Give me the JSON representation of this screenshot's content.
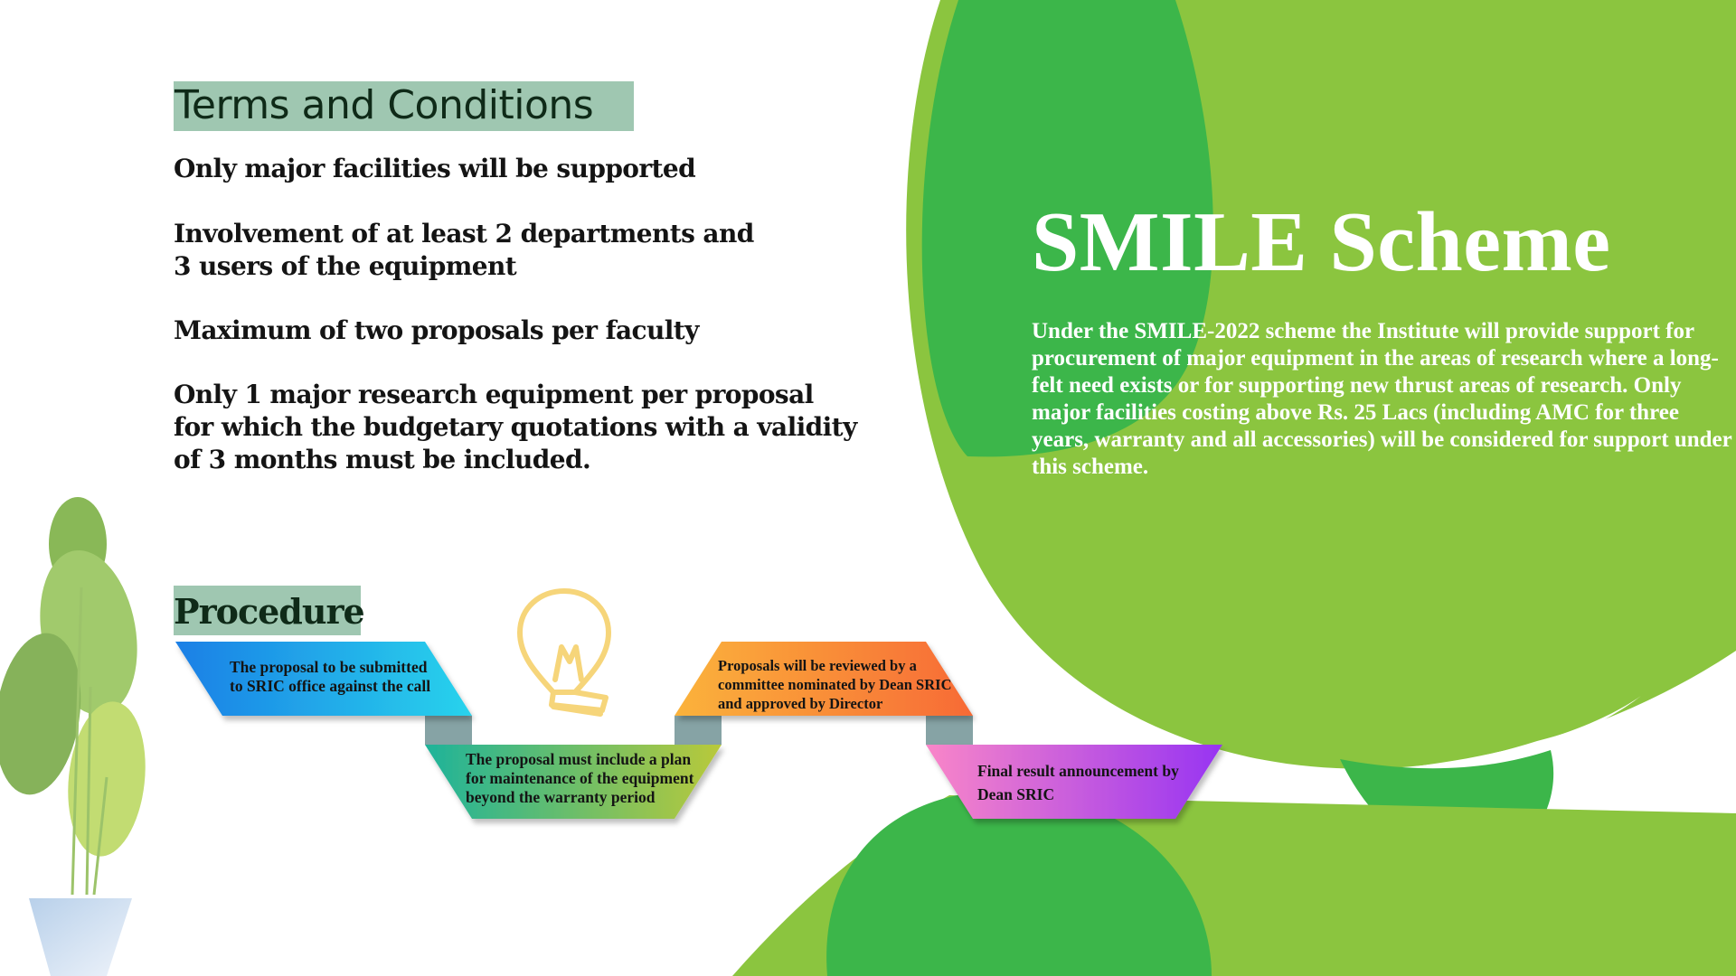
{
  "terms": {
    "heading": "Terms and Conditions",
    "items": [
      "Only major facilities will be supported",
      "Involvement of at least 2 departments and\n3 users of the equipment",
      "Maximum of two proposals per faculty",
      "Only 1 major research equipment per proposal\nfor which the budgetary quotations with a validity\nof 3 months must be included."
    ]
  },
  "scheme": {
    "title": "SMILE Scheme",
    "description": "Under the SMILE-2022 scheme the Institute will provide support for procurement of major equipment in the areas of research where a long-felt need exists or for supporting new thrust areas of research. Only major facilities costing above Rs. 25 Lacs (including AMC for three years, warranty and all accessories) will be considered for support under this scheme."
  },
  "procedure": {
    "heading": "Procedure",
    "steps": [
      "The proposal to be submitted to SRIC office against the call",
      "The proposal must include a plan for maintenance of the equipment beyond the warranty period",
      "Proposals will be reviewed by a committee nominated by Dean SRIC and approved by Director",
      "Final result announcement by Dean SRIC"
    ]
  },
  "colors": {
    "green_dark": "#3cb64a",
    "green_light": "#8bc53f",
    "heading_box": "#9fc7b1"
  }
}
